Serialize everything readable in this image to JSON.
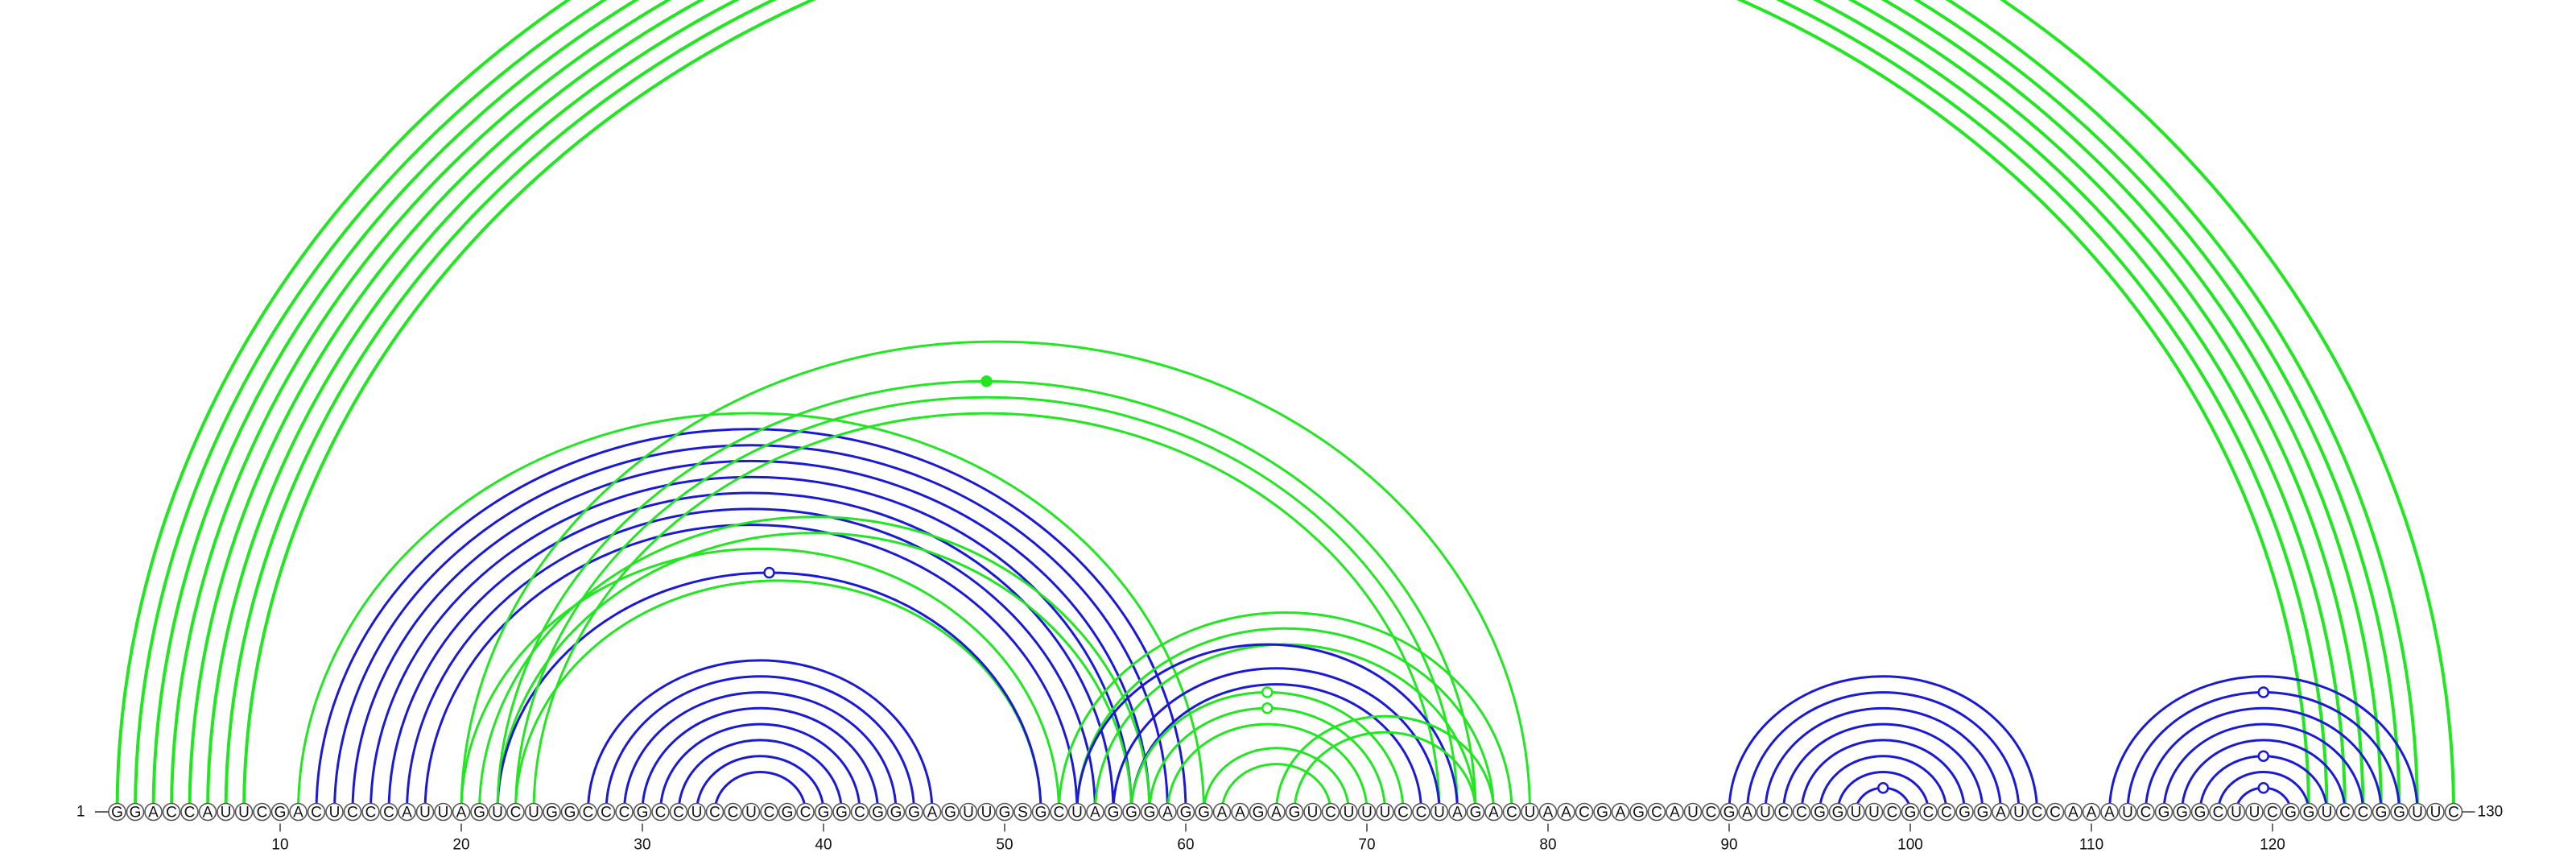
{
  "diagram": {
    "type": "rna-arc-diagram",
    "start_label": "1",
    "end_label": "130",
    "sequence": "GGACCAUUCGACUCCCAUUAGUCUGGCCCGCCUCCUCGCGGCGGGAGUUGSGCUAGGGAGGAAGAGUCUUUCCUAGACUAACGAGCAUCGAUCCGGUUCGCCGGAUCCAAAUCGGGCUUCGGUCCGGUUC",
    "ticks": [
      10,
      20,
      30,
      40,
      50,
      60,
      70,
      80,
      90,
      100,
      110,
      120
    ],
    "colors": {
      "blue": "#1a1ad6",
      "green": "#22e622"
    },
    "helices": [
      {
        "color": "green",
        "width": 4,
        "pairs": [
          [
            1,
            130
          ],
          [
            2,
            128
          ],
          [
            3,
            127
          ],
          [
            4,
            126
          ],
          [
            5,
            125
          ]
        ],
        "markers": [
          {
            "pos": 1,
            "fill": "open"
          }
        ]
      },
      {
        "color": "green",
        "width": 4,
        "pairs": [
          [
            6,
            124
          ],
          [
            7,
            123
          ],
          [
            8,
            122
          ]
        ]
      },
      {
        "color": "blue",
        "width": 3,
        "pairs": [
          [
            12,
            60
          ],
          [
            13,
            59
          ],
          [
            14,
            58
          ],
          [
            15,
            57
          ],
          [
            16,
            56
          ],
          [
            17,
            55
          ],
          [
            18,
            54
          ]
        ]
      },
      {
        "color": "green",
        "width": 3,
        "pairs": [
          [
            11,
            61
          ],
          [
            21,
            58
          ],
          [
            22,
            57
          ]
        ]
      },
      {
        "color": "green",
        "width": 3,
        "pairs": [
          [
            20,
            53
          ],
          [
            23,
            52
          ]
        ]
      },
      {
        "color": "blue",
        "width": 3,
        "pairs": [
          [
            22,
            52
          ]
        ],
        "markers": [
          {
            "pos": 0,
            "fill": "open"
          }
        ]
      },
      {
        "color": "blue",
        "width": 3,
        "pairs": [
          [
            27,
            46
          ],
          [
            28,
            45
          ],
          [
            29,
            44
          ],
          [
            30,
            43
          ],
          [
            31,
            42
          ],
          [
            32,
            41
          ],
          [
            33,
            40
          ],
          [
            34,
            39
          ]
        ]
      },
      {
        "color": "green",
        "width": 3,
        "pairs": [
          [
            22,
            76
          ],
          [
            23,
            75
          ],
          [
            24,
            74
          ]
        ],
        "markers": [
          {
            "pos": 0,
            "fill": "solid"
          }
        ]
      },
      {
        "color": "green",
        "width": 3,
        "pairs": [
          [
            20,
            79
          ]
        ]
      },
      {
        "color": "green",
        "width": 3,
        "pairs": [
          [
            53,
            78
          ],
          [
            54,
            77
          ],
          [
            55,
            76
          ]
        ]
      },
      {
        "color": "blue",
        "width": 3,
        "pairs": [
          [
            54,
            75
          ],
          [
            56,
            74
          ],
          [
            57,
            73
          ]
        ]
      },
      {
        "color": "green",
        "width": 3,
        "pairs": [
          [
            57,
            72
          ],
          [
            58,
            71
          ],
          [
            59,
            70
          ]
        ],
        "markers": [
          {
            "pos": 0,
            "fill": "open"
          },
          {
            "pos": 1,
            "fill": "open"
          }
        ]
      },
      {
        "color": "green",
        "width": 3,
        "pairs": [
          [
            61,
            69
          ],
          [
            62,
            68
          ]
        ]
      },
      {
        "color": "green",
        "width": 3,
        "pairs": [
          [
            65,
            77
          ],
          [
            66,
            76
          ]
        ]
      },
      {
        "color": "blue",
        "width": 3,
        "pairs": [
          [
            90,
            107
          ],
          [
            91,
            106
          ],
          [
            92,
            105
          ],
          [
            93,
            104
          ],
          [
            94,
            103
          ],
          [
            95,
            102
          ],
          [
            96,
            101
          ],
          [
            97,
            100
          ]
        ],
        "markers": [
          {
            "pos": 7,
            "fill": "open"
          }
        ]
      },
      {
        "color": "blue",
        "width": 3,
        "pairs": [
          [
            111,
            128
          ],
          [
            112,
            127
          ],
          [
            113,
            126
          ],
          [
            114,
            125
          ],
          [
            115,
            124
          ],
          [
            116,
            123
          ],
          [
            117,
            122
          ],
          [
            118,
            121
          ]
        ],
        "markers": [
          {
            "pos": 1,
            "fill": "open"
          },
          {
            "pos": 5,
            "fill": "open"
          },
          {
            "pos": 7,
            "fill": "open"
          }
        ]
      }
    ]
  }
}
